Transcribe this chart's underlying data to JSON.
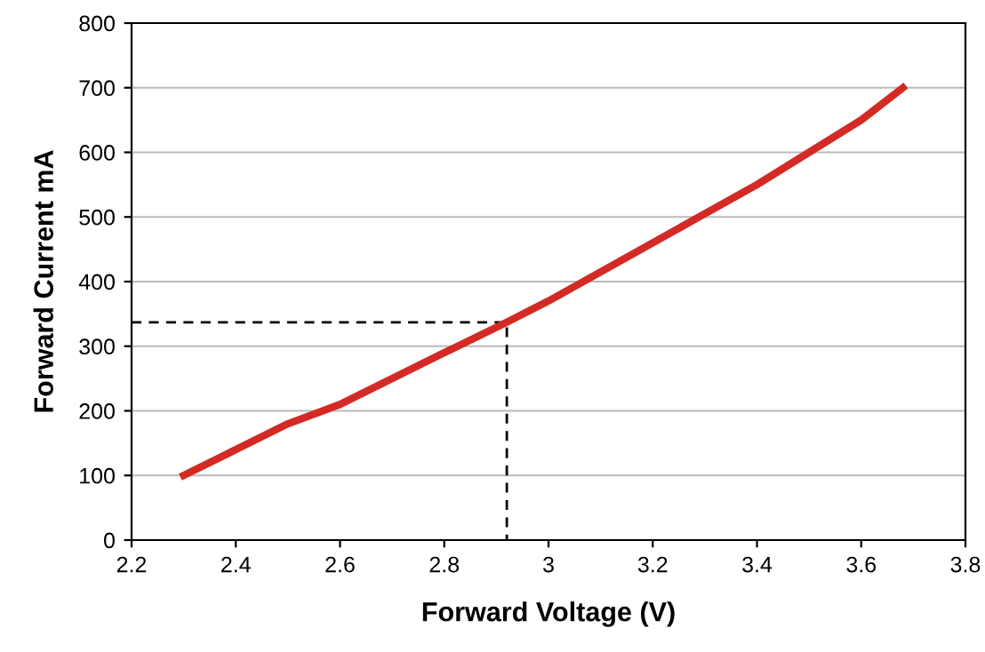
{
  "chart_data": {
    "type": "line",
    "xlabel": "Forward Voltage (V)",
    "ylabel": "Forward Current mA",
    "xlim": [
      2.2,
      3.8
    ],
    "xticks": [
      {
        "value": 2.2,
        "label": "2.2"
      },
      {
        "value": 2.4,
        "label": "2.4"
      },
      {
        "value": 2.6,
        "label": "2.6"
      },
      {
        "value": 2.8,
        "label": "2.8"
      },
      {
        "value": 3.0,
        "label": "3"
      },
      {
        "value": 3.2,
        "label": "3.2"
      },
      {
        "value": 3.4,
        "label": "3.4"
      },
      {
        "value": 3.6,
        "label": "3.6"
      },
      {
        "value": 3.8,
        "label": "3.8"
      }
    ],
    "ylim": [
      0,
      800
    ],
    "yticks": [
      0,
      100,
      200,
      300,
      400,
      500,
      600,
      700,
      800
    ],
    "grid": "y",
    "series": [
      {
        "color": "#d42a26",
        "line_style": "solid",
        "x": [
          2.3,
          2.5,
          2.6,
          2.8,
          2.92,
          3.0,
          3.2,
          3.4,
          3.6,
          3.68
        ],
        "values": [
          100,
          180,
          210,
          290,
          337,
          370,
          460,
          550,
          650,
          700
        ]
      },
      {
        "color": "#000000",
        "line_style": "dashed",
        "x": [
          2.2,
          2.92,
          2.92
        ],
        "values": [
          337,
          337,
          0
        ]
      }
    ]
  }
}
